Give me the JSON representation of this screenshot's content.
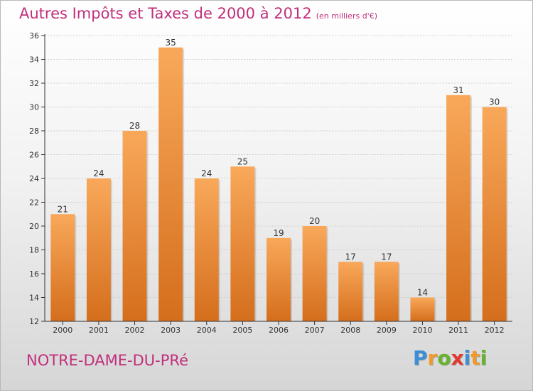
{
  "header": {
    "title": "Autres Impôts et Taxes de 2000 à 2012",
    "unit": "(en milliers d'€)"
  },
  "footer": {
    "town": "NOTRE-DAME-DU-PRé",
    "logo_letters": [
      "P",
      "r",
      "o",
      "x",
      "i",
      "t",
      "i"
    ]
  },
  "colors": {
    "title": "#c0307c",
    "bar_top": "#f9a85a",
    "bar_bottom": "#d46e1c",
    "logo": [
      "#3a8fd6",
      "#f19a2c",
      "#66b32e",
      "#e2382f",
      "#3a8fd6",
      "#f19a2c",
      "#66b32e"
    ]
  },
  "chart_data": {
    "type": "bar",
    "title": "Autres Impôts et Taxes de 2000 à 2012",
    "subtitle": "(en milliers d'€)",
    "categories": [
      "2000",
      "2001",
      "2002",
      "2003",
      "2004",
      "2005",
      "2006",
      "2007",
      "2008",
      "2009",
      "2010",
      "2011",
      "2012"
    ],
    "values": [
      21,
      24,
      28,
      35,
      24,
      25,
      19,
      20,
      17,
      17,
      14,
      31,
      30
    ],
    "ylim": [
      12,
      36
    ],
    "yticks": [
      12,
      14,
      16,
      18,
      20,
      22,
      24,
      26,
      28,
      30,
      32,
      34,
      36
    ],
    "grid": true,
    "legend": "none"
  }
}
